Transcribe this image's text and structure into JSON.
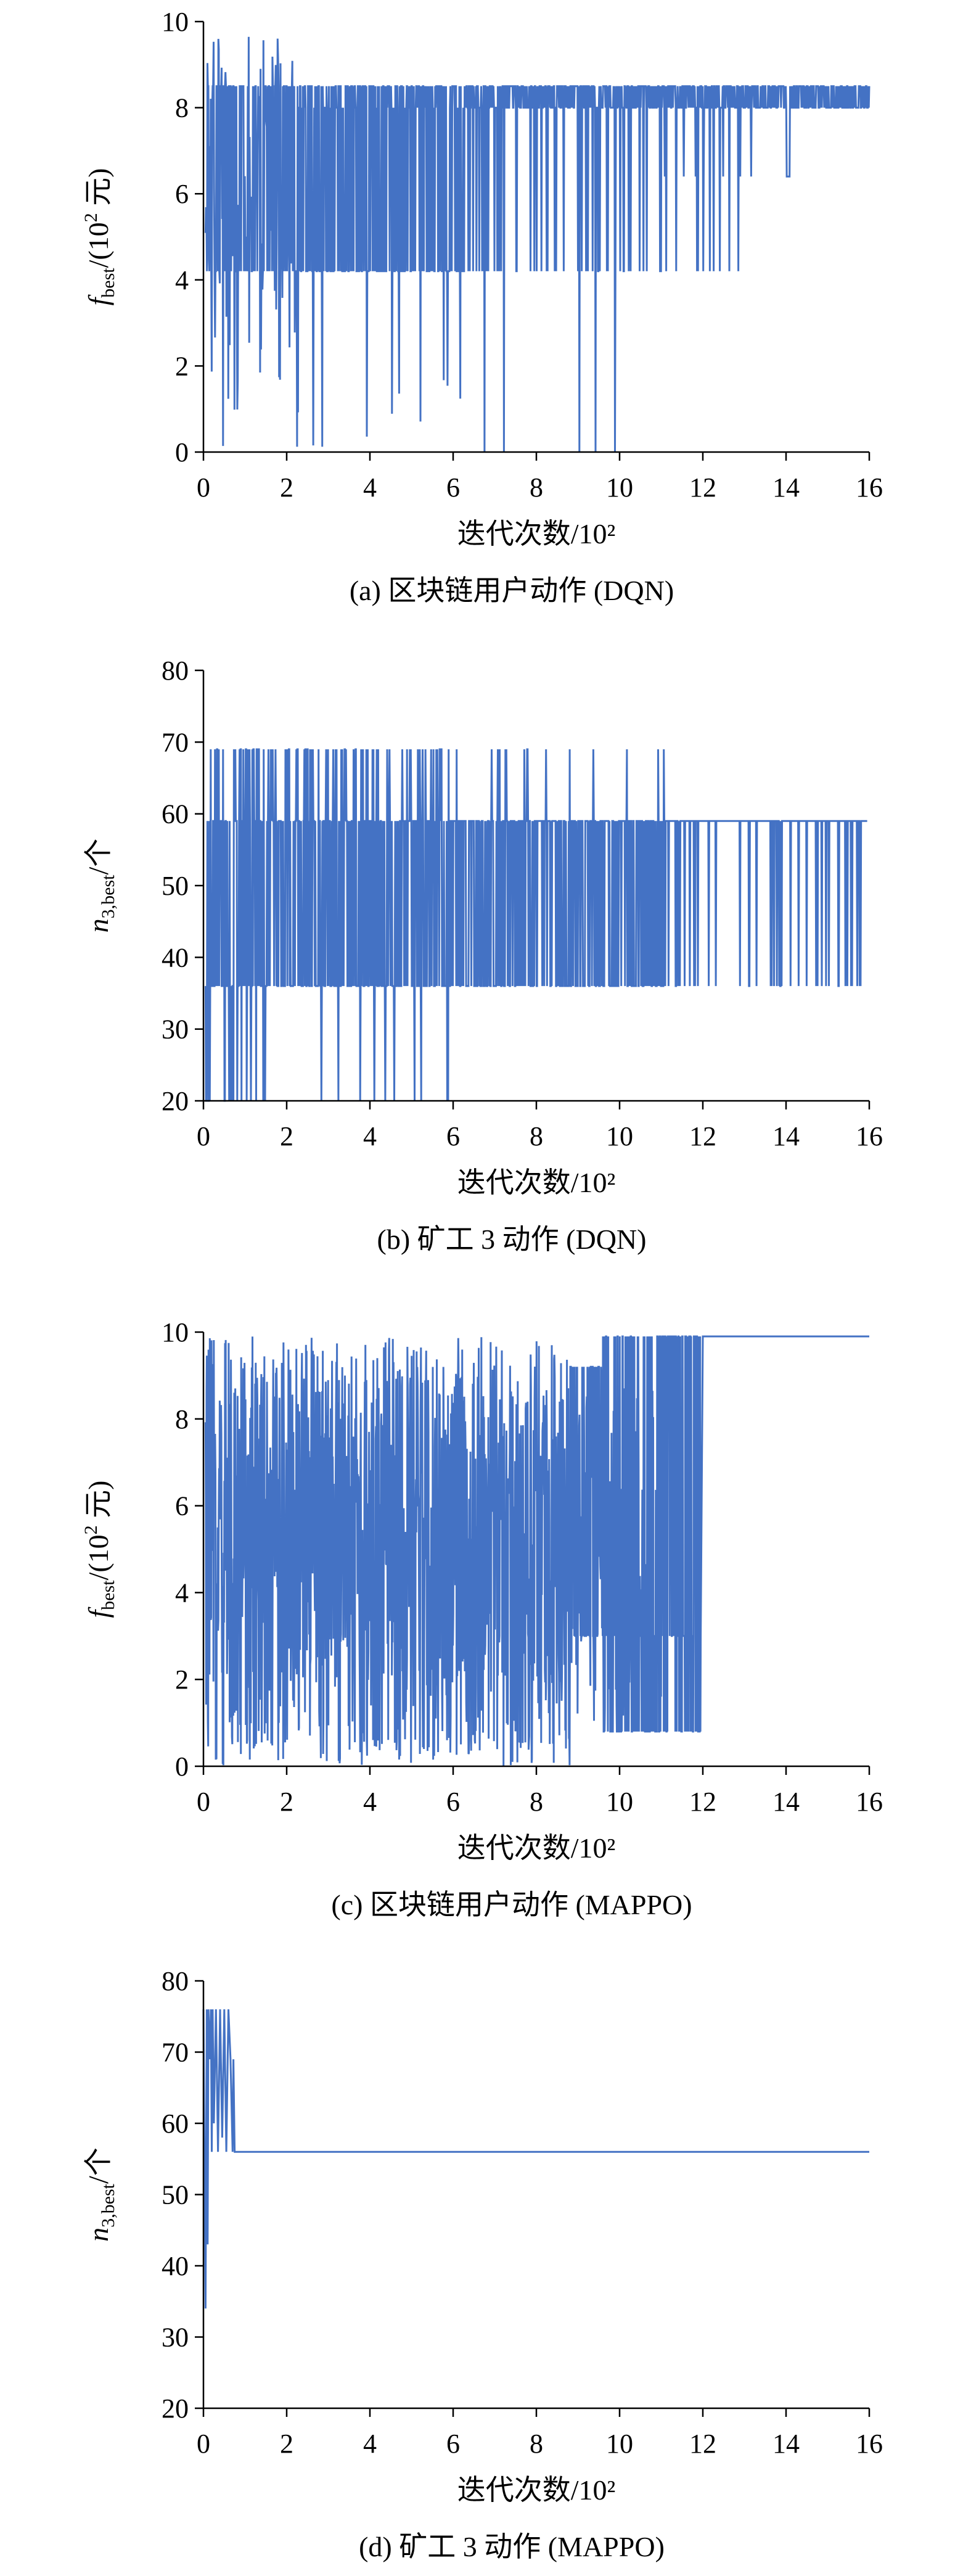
{
  "series_color": "#4472C4",
  "chart_data": [
    {
      "type": "line",
      "caption": "(a) 区块链用户动作 (DQN)",
      "xlabel": "迭代次数/10²",
      "ylabel": "f_best/(10² 元)",
      "ylabel_parts": {
        "var": "f",
        "sub": "best",
        "rest": "/(10",
        "sup": "2",
        "unit": " 元)"
      },
      "xlim": [
        0,
        16
      ],
      "ylim": [
        0,
        10
      ],
      "xticks": [
        0,
        2,
        4,
        6,
        8,
        10,
        12,
        14,
        16
      ],
      "yticks": [
        0,
        2,
        4,
        6,
        8,
        10
      ],
      "x_data_range": [
        0,
        16
      ],
      "pattern": "noisy-dqn-f",
      "description_values": {
        "upper_band": 8.5,
        "lower_band": 8.0,
        "floor": 4.2,
        "peak": 9.7,
        "min": 0
      }
    },
    {
      "type": "line",
      "caption": "(b) 矿工 3 动作 (DQN)",
      "xlabel": "迭代次数/10²",
      "ylabel": "n_3,best/个",
      "ylabel_parts": {
        "var": "n",
        "sub": "3,best",
        "rest": "/个",
        "sup": "",
        "unit": ""
      },
      "xlim": [
        0,
        16
      ],
      "ylim": [
        20,
        80
      ],
      "xticks": [
        0,
        2,
        4,
        6,
        8,
        10,
        12,
        14,
        16
      ],
      "yticks": [
        20,
        30,
        40,
        50,
        60,
        70,
        80
      ],
      "x_data_range": [
        0,
        16
      ],
      "pattern": "noisy-dqn-n",
      "description_values": {
        "upper": 69,
        "band": 59,
        "floor": 36,
        "min": 20
      }
    },
    {
      "type": "line",
      "caption": "(c) 区块链用户动作 (MAPPO)",
      "xlabel": "迭代次数/10²",
      "ylabel": "f_best/(10² 元)",
      "ylabel_parts": {
        "var": "f",
        "sub": "best",
        "rest": "/(10",
        "sup": "2",
        "unit": " 元)"
      },
      "xlim": [
        0,
        16
      ],
      "ylim": [
        0,
        10
      ],
      "xticks": [
        0,
        2,
        4,
        6,
        8,
        10,
        12,
        14,
        16
      ],
      "yticks": [
        0,
        2,
        4,
        6,
        8,
        10
      ],
      "x_data_range": [
        0,
        16
      ],
      "pattern": "noisy-mappo-f",
      "description_values": {
        "converged": 9.9,
        "converge_x": 12.0,
        "min": 0
      }
    },
    {
      "type": "line",
      "caption": "(d) 矿工 3 动作 (MAPPO)",
      "xlabel": "迭代次数/10²",
      "ylabel": "n_3,best/个",
      "ylabel_parts": {
        "var": "n",
        "sub": "3,best",
        "rest": "/个",
        "sup": "",
        "unit": ""
      },
      "xlim": [
        0,
        16
      ],
      "ylim": [
        20,
        80
      ],
      "xticks": [
        0,
        2,
        4,
        6,
        8,
        10,
        12,
        14,
        16
      ],
      "yticks": [
        20,
        30,
        40,
        50,
        60,
        70,
        80
      ],
      "x_data_range": [
        0,
        16
      ],
      "pattern": "steps",
      "steps": {
        "x": [
          0,
          0.05,
          0.08,
          0.1,
          0.12,
          0.15,
          0.18,
          0.2,
          0.22,
          0.25,
          0.3,
          0.35,
          0.4,
          0.45,
          0.5,
          0.55,
          0.6,
          0.65,
          0.7,
          0.72,
          0.75,
          0.78,
          16
        ],
        "y": [
          76,
          34,
          76,
          43,
          76,
          69,
          76,
          56,
          76,
          60,
          76,
          56,
          76,
          58,
          76,
          56,
          76,
          69,
          56,
          69,
          56,
          56,
          56
        ]
      }
    }
  ]
}
